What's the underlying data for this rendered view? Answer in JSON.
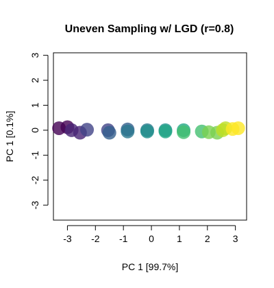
{
  "chart_data": {
    "type": "scatter",
    "title": "Uneven Sampling w/ LGD (r=0.8)",
    "xlabel": "PC 1 [99.7%]",
    "ylabel": "PC 1 [0.1%]",
    "xlim": [
      -3.5,
      3.4
    ],
    "ylim": [
      -3.6,
      3.1
    ],
    "xticks": [
      -3,
      -2,
      -1,
      0,
      1,
      2,
      3
    ],
    "yticks": [
      -3,
      -2,
      -1,
      0,
      1,
      2,
      3
    ],
    "grid": false,
    "legend": "none",
    "colors": [
      "#440154",
      "#482475",
      "#414487",
      "#355f8d",
      "#2a788e",
      "#21918c",
      "#22a884",
      "#44bf70",
      "#7ad151",
      "#bddf26",
      "#fde725"
    ],
    "points": [
      {
        "x": -3.3,
        "y": 0.08
      },
      {
        "x": -3.0,
        "y": 0.12
      },
      {
        "x": -2.85,
        "y": 0.0
      },
      {
        "x": -2.55,
        "y": -0.1
      },
      {
        "x": -2.3,
        "y": 0.02
      },
      {
        "x": -1.55,
        "y": 0.0
      },
      {
        "x": -1.5,
        "y": -0.1
      },
      {
        "x": -0.85,
        "y": 0.03
      },
      {
        "x": -0.85,
        "y": -0.05
      },
      {
        "x": -0.15,
        "y": 0.0
      },
      {
        "x": -0.15,
        "y": -0.05
      },
      {
        "x": 0.5,
        "y": 0.0
      },
      {
        "x": 0.5,
        "y": -0.05
      },
      {
        "x": 1.15,
        "y": 0.0
      },
      {
        "x": 1.15,
        "y": -0.08
      },
      {
        "x": 1.8,
        "y": -0.05
      },
      {
        "x": 2.05,
        "y": -0.08
      },
      {
        "x": 2.35,
        "y": -0.1
      },
      {
        "x": 2.55,
        "y": 0.0
      },
      {
        "x": 2.65,
        "y": 0.08
      },
      {
        "x": 2.9,
        "y": 0.05
      },
      {
        "x": 3.1,
        "y": 0.08
      }
    ]
  }
}
